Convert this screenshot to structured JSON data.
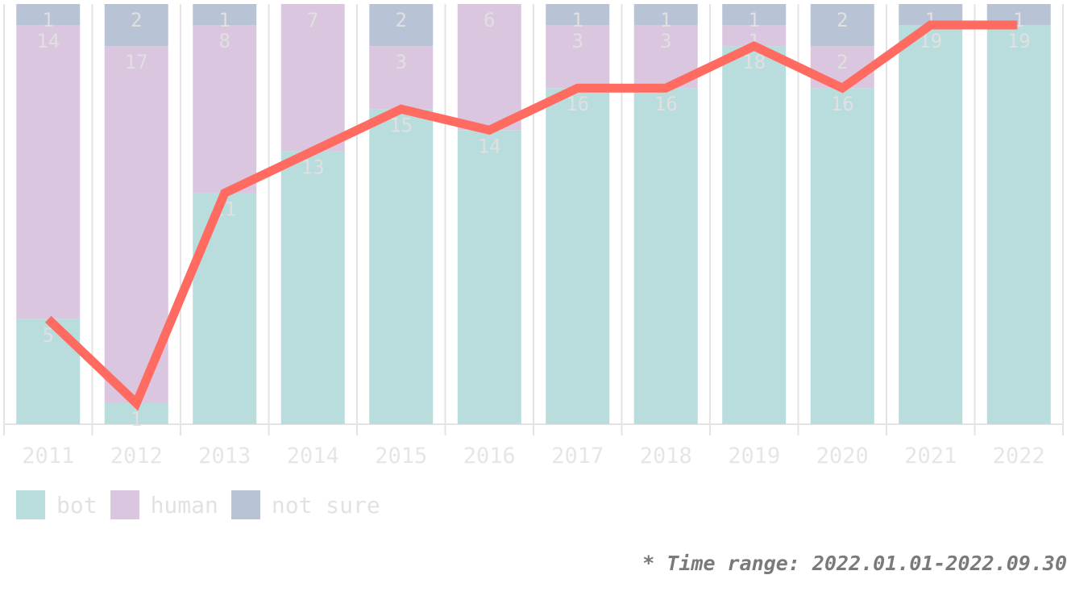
{
  "chart_data": {
    "type": "bar",
    "stacked": true,
    "categories": [
      "2011",
      "2012",
      "2013",
      "2014",
      "2015",
      "2016",
      "2017",
      "2018",
      "2019",
      "2020",
      "2021",
      "2022"
    ],
    "series": [
      {
        "name": "bot",
        "color": "#b9dcdc",
        "values": [
          5,
          1,
          11,
          13,
          15,
          14,
          16,
          16,
          18,
          16,
          19,
          19
        ]
      },
      {
        "name": "human",
        "color": "#dbc6df",
        "values": [
          14,
          17,
          8,
          7,
          3,
          6,
          3,
          3,
          1,
          2,
          0,
          0
        ]
      },
      {
        "name": "not sure",
        "color": "#b8c3d5",
        "values": [
          1,
          2,
          1,
          0,
          2,
          0,
          1,
          1,
          1,
          2,
          1,
          1
        ]
      }
    ],
    "line": {
      "series": "bot",
      "color": "#ff6b61",
      "values": [
        5,
        1,
        11,
        13,
        15,
        14,
        16,
        16,
        18,
        16,
        19,
        19
      ]
    },
    "ylim": [
      0,
      20
    ],
    "grid": "vertical category separators",
    "legend": "bottom-left"
  },
  "footnote": "* Time range: 2022.01.01-2022.09.30"
}
